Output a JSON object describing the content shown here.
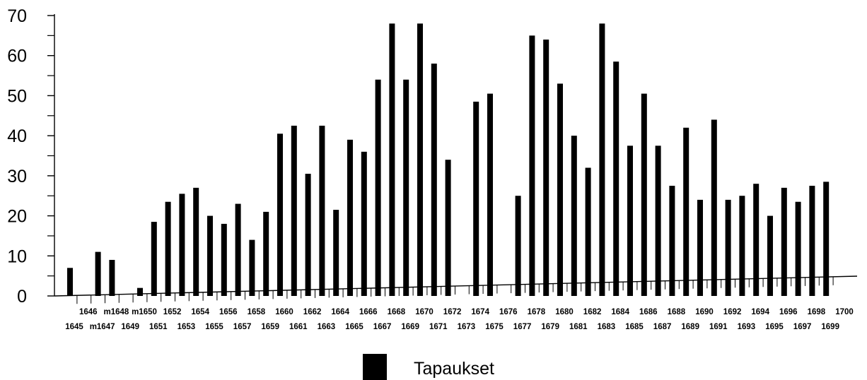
{
  "chart_data": {
    "type": "bar",
    "categories": [
      "1645",
      "1646",
      "m1647",
      "m1648",
      "1649",
      "m1650",
      "1651",
      "1652",
      "1653",
      "1654",
      "1655",
      "1656",
      "1657",
      "1658",
      "1659",
      "1660",
      "1661",
      "1662",
      "1663",
      "1664",
      "1665",
      "1666",
      "1667",
      "1668",
      "1669",
      "1670",
      "1671",
      "1672",
      "1673",
      "1674",
      "1675",
      "1676",
      "1677",
      "1678",
      "1679",
      "1680",
      "1681",
      "1682",
      "1683",
      "1684",
      "1685",
      "1686",
      "1687",
      "1688",
      "1689",
      "1690",
      "1691",
      "1692",
      "1693",
      "1694",
      "1695",
      "1696",
      "1697",
      "1698",
      "1699",
      "1700"
    ],
    "series": [
      {
        "name": "Tapaukset",
        "values": [
          7,
          0,
          11,
          9,
          0,
          2,
          18.5,
          23.5,
          25.5,
          27,
          20,
          18,
          23,
          14,
          21,
          40.5,
          42.5,
          30.5,
          42.5,
          21.5,
          39,
          36,
          54,
          68,
          54,
          68,
          58,
          34,
          0,
          48.5,
          50.5,
          0,
          25,
          65,
          64,
          53,
          40,
          32,
          68,
          58.5,
          37.5,
          50.5,
          37.5,
          27.5,
          42,
          24,
          44,
          24,
          25,
          28,
          20,
          27,
          23.5,
          27.5,
          28.5,
          0
        ],
        "color": "#000000"
      }
    ],
    "title": "",
    "xlabel": "",
    "ylabel": "",
    "ylim": [
      0,
      70
    ],
    "yticks": [
      "0",
      "10",
      "20",
      "30",
      "40",
      "50",
      "60",
      "70"
    ],
    "legend": {
      "position": "bottom-center",
      "label": "Tapaukset"
    },
    "grid": false
  }
}
